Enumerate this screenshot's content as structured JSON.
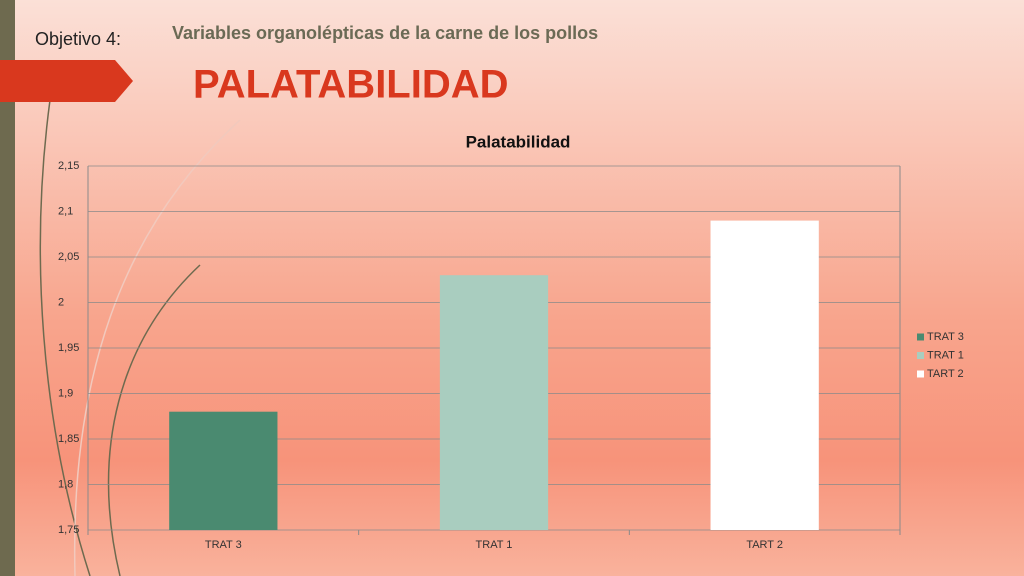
{
  "slide": {
    "objective": "Objetivo 4:",
    "subtitle": "Variables organolépticas de la carne de los pollos",
    "heading": "PALATABILIDAD"
  },
  "chart_data": {
    "type": "bar",
    "title": "Palatabilidad",
    "categories": [
      "TRAT 3",
      "TRAT 1",
      "TART 2"
    ],
    "values": [
      1.88,
      2.03,
      2.09
    ],
    "colors": [
      "#4a8a70",
      "#a9cdbf",
      "#ffffff"
    ],
    "ylim": [
      1.75,
      2.15
    ],
    "yticks": [
      {
        "value": 1.75,
        "label": "1,75"
      },
      {
        "value": 1.8,
        "label": "1,8"
      },
      {
        "value": 1.85,
        "label": "1,85"
      },
      {
        "value": 1.9,
        "label": "1,9"
      },
      {
        "value": 1.95,
        "label": "1,95"
      },
      2,
      {
        "value": 2.05,
        "label": "2,05"
      },
      {
        "value": 2.1,
        "label": "2,1"
      },
      {
        "value": 2.15,
        "label": "2,15"
      }
    ],
    "grid": true,
    "legend": "right"
  }
}
